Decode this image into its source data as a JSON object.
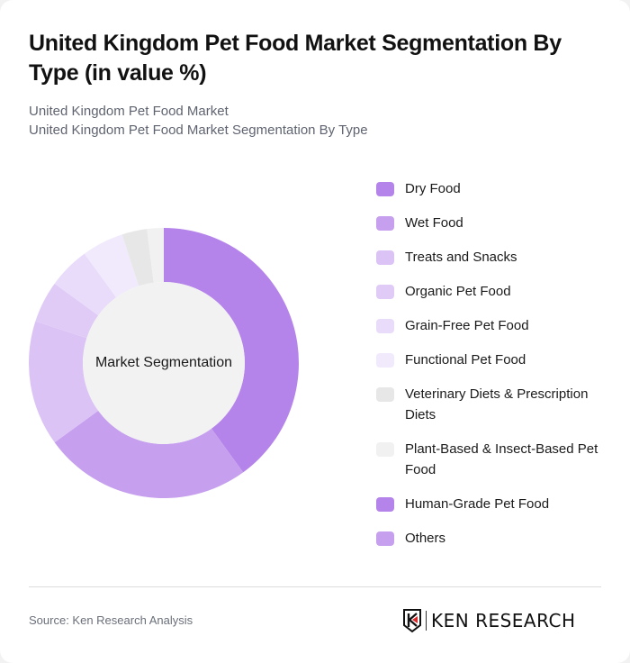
{
  "header": {
    "title": "United Kingdom Pet Food Market Segmentation By Type (in value %)",
    "subtitle_lines": [
      "United Kingdom Pet Food Market",
      "United Kingdom Pet Food Market Segmentation By Type"
    ]
  },
  "chart": {
    "center_label": "Market Segmentation"
  },
  "chart_data": {
    "type": "pie",
    "subtype": "donut",
    "title": "United Kingdom Pet Food Market Segmentation By Type (in value %)",
    "center_label": "Market Segmentation",
    "categories": [
      "Dry Food",
      "Wet Food",
      "Treats and Snacks",
      "Organic Pet Food",
      "Grain-Free Pet Food",
      "Functional Pet Food",
      "Veterinary Diets & Prescription Diets",
      "Plant-Based & Insect-Based Pet Food",
      "Human-Grade Pet Food",
      "Others"
    ],
    "values": [
      40,
      25,
      15,
      5,
      5,
      5,
      3,
      2,
      0,
      0
    ],
    "colors": [
      "#b584ea",
      "#c6a0ee",
      "#dcc3f6",
      "#e0cbf7",
      "#e9dcfa",
      "#f1eafc",
      "#e7e7e7",
      "#f1f1f1",
      "#b584ea",
      "#c6a0ee"
    ],
    "unit": "%",
    "legend_position": "right",
    "start_angle_deg": 0,
    "direction": "clockwise"
  },
  "legend": {
    "items": [
      {
        "label": "Dry Food",
        "color": "#b584ea"
      },
      {
        "label": "Wet Food",
        "color": "#c6a0ee"
      },
      {
        "label": "Treats and Snacks",
        "color": "#dcc3f6"
      },
      {
        "label": "Organic Pet Food",
        "color": "#e0cbf7"
      },
      {
        "label": "Grain-Free Pet Food",
        "color": "#e9dcfa"
      },
      {
        "label": "Functional Pet Food",
        "color": "#f1eafc"
      },
      {
        "label": "Veterinary Diets & Prescription Diets",
        "color": "#e7e7e7"
      },
      {
        "label": "Plant-Based & Insect-Based Pet Food",
        "color": "#f1f1f1"
      },
      {
        "label": "Human-Grade Pet Food",
        "color": "#b584ea"
      },
      {
        "label": "Others",
        "color": "#c6a0ee"
      }
    ]
  },
  "footer": {
    "source": "Source: Ken Research Analysis",
    "logo_text": "KEN RESEARCH"
  },
  "colors": {
    "center_fill": "#f2f2f2",
    "logo_accent": "#d92b2b"
  }
}
